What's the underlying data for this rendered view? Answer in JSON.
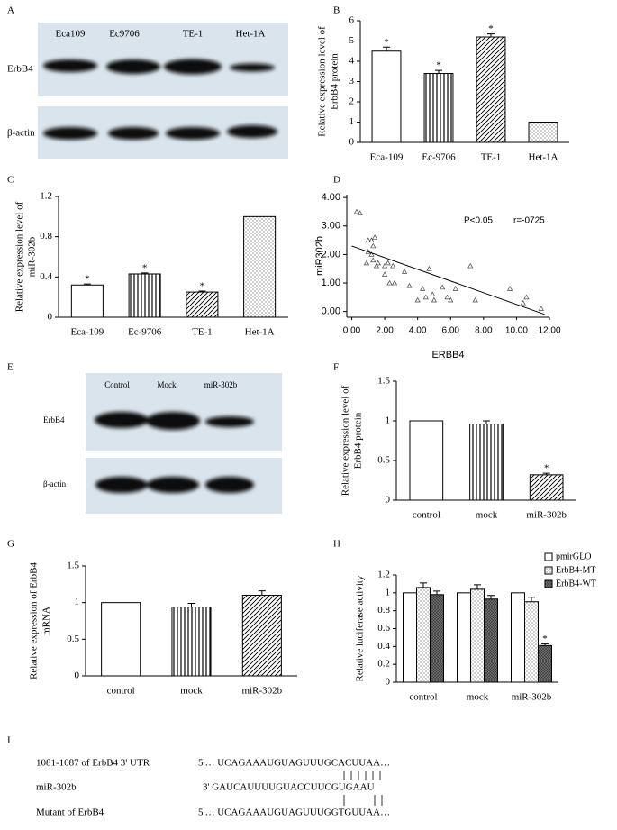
{
  "blot_a": {
    "panel": "A",
    "columns": [
      "Eca109",
      "Ec9706",
      "TE-1",
      "Het-1A"
    ],
    "rows": [
      "ErbB4",
      "β-actin"
    ]
  },
  "blot_e": {
    "panel": "E",
    "columns": [
      "Control",
      "Mock",
      "miR-302b"
    ],
    "rows": [
      "ErbB4",
      "β-actin"
    ]
  },
  "chart_data": [
    {
      "type": "bar",
      "panel": "B",
      "ylabel": [
        "Relative expression level of",
        "ErbB4 protein"
      ],
      "categories": [
        "Eca-109",
        "Ec-9706",
        "TE-1",
        "Het-1A"
      ],
      "values": [
        4.5,
        3.4,
        5.2,
        1
      ],
      "errors": [
        0.2,
        0.15,
        0.15,
        0
      ],
      "significance": [
        "*",
        "*",
        "*",
        null
      ],
      "patterns": [
        "none",
        "vertical",
        "diagonal",
        "dots"
      ],
      "ylim": [
        0,
        6
      ],
      "yticks": [
        0,
        1,
        2,
        3,
        4,
        5,
        6
      ]
    },
    {
      "type": "bar",
      "panel": "C",
      "ylabel": [
        "Relative expression level of",
        "miR-302b"
      ],
      "categories": [
        "Eca-109",
        "Ec-9706",
        "TE-1",
        "Het-1A"
      ],
      "values": [
        0.32,
        0.43,
        0.25,
        1
      ],
      "errors": [
        0.01,
        0.01,
        0.01,
        0
      ],
      "significance": [
        "*",
        "*",
        "*",
        null
      ],
      "patterns": [
        "none",
        "vertical",
        "diagonal",
        "dots"
      ],
      "ylim": [
        0,
        1.2
      ],
      "yticks": [
        0,
        0.4,
        0.8,
        1.2
      ]
    },
    {
      "type": "scatter",
      "panel": "D",
      "xlabel": "ERBB4",
      "ylabel": [
        "miR302b"
      ],
      "annotations": [
        "P<0.05",
        "r=-0725"
      ],
      "x": [
        0.3,
        0.5,
        1.0,
        1.2,
        1.4,
        1.3,
        1.0,
        1.2,
        0.9,
        1.3,
        1.5,
        1.6,
        2.0,
        2.2,
        2.5,
        2.0,
        2.3,
        2.6,
        3.2,
        3.5,
        4.0,
        4.3,
        4.7,
        4.5,
        4.9,
        5.0,
        5.5,
        5.8,
        6.0,
        6.3,
        7.2,
        7.5,
        9.6,
        10.4,
        10.6,
        11.5
      ],
      "y": [
        3.5,
        3.45,
        2.5,
        2.5,
        2.6,
        2.3,
        2.1,
        2.0,
        1.7,
        1.8,
        1.6,
        1.7,
        1.6,
        1.7,
        1.6,
        1.3,
        1.0,
        1.0,
        1.4,
        0.9,
        0.4,
        0.8,
        1.5,
        0.5,
        0.6,
        0.4,
        0.85,
        0.5,
        0.4,
        0.8,
        1.6,
        0.4,
        0.8,
        0.3,
        0.5,
        0.1
      ],
      "fit": {
        "x": [
          0,
          11.7
        ],
        "y": [
          2.3,
          -0.1
        ]
      },
      "xlim": [
        -0.3,
        12
      ],
      "ylim": [
        -0.2,
        4.1
      ],
      "xticks": [
        {
          "value": 0,
          "label": "0.00"
        },
        {
          "value": 2,
          "label": "2.00"
        },
        {
          "value": 4,
          "label": "4.00"
        },
        {
          "value": 6,
          "label": "6.00"
        },
        {
          "value": 8,
          "label": "8.00"
        },
        {
          "value": 10,
          "label": "10.00"
        },
        {
          "value": 12,
          "label": "12.00"
        }
      ],
      "yticks": [
        {
          "value": 0,
          "label": "0.00"
        },
        {
          "value": 1,
          "label": "1.00"
        },
        {
          "value": 2,
          "label": "2.00"
        },
        {
          "value": 3,
          "label": "3.00"
        },
        {
          "value": 4,
          "label": "4.00"
        }
      ]
    },
    {
      "type": "bar",
      "panel": "F",
      "ylabel": [
        "Relative expression level of",
        "ErbB4 protein"
      ],
      "categories": [
        "control",
        "mock",
        "miR-302b"
      ],
      "values": [
        1,
        0.96,
        0.32
      ],
      "errors": [
        0,
        0.04,
        0.02
      ],
      "significance": [
        null,
        null,
        "*"
      ],
      "patterns": [
        "none",
        "vertical",
        "diagonal"
      ],
      "ylim": [
        0,
        1.5
      ],
      "yticks": [
        0,
        0.5,
        1,
        1.5
      ]
    },
    {
      "type": "bar",
      "panel": "G",
      "ylabel": [
        "Relative expression of ErbB4",
        "mRNA"
      ],
      "categories": [
        "control",
        "mock",
        "miR-302b"
      ],
      "values": [
        1,
        0.94,
        1.1
      ],
      "errors": [
        0,
        0.05,
        0.06
      ],
      "significance": [
        null,
        null,
        null
      ],
      "patterns": [
        "none",
        "vertical",
        "diagonal"
      ],
      "ylim": [
        0,
        1.5
      ],
      "yticks": [
        0,
        0.5,
        1,
        1.5
      ]
    },
    {
      "type": "grouped_bar",
      "panel": "H",
      "ylabel": [
        "Relative luciferase activity"
      ],
      "categories": [
        "control",
        "mock",
        "miR-302b"
      ],
      "series": [
        {
          "name": "pmirGLO",
          "pattern": "none",
          "values": [
            1,
            1,
            1
          ],
          "errors": [
            0,
            0,
            0
          ],
          "significance": [
            null,
            null,
            null
          ]
        },
        {
          "name": "ErbB4-MT",
          "pattern": "dots",
          "values": [
            1.06,
            1.04,
            0.9
          ],
          "errors": [
            0.05,
            0.05,
            0.05
          ],
          "significance": [
            null,
            null,
            null
          ]
        },
        {
          "name": "ErbB4-WT",
          "pattern": "grid",
          "values": [
            0.98,
            0.93,
            0.41
          ],
          "errors": [
            0.04,
            0.04,
            0.02
          ],
          "significance": [
            null,
            null,
            "*"
          ]
        }
      ],
      "ylim": [
        0,
        1.2
      ],
      "yticks": [
        0,
        0.2,
        0.4,
        0.6,
        0.8,
        1,
        1.2
      ]
    }
  ],
  "sequence": {
    "panel": "I",
    "rows": [
      {
        "label": "1081-1087 of ErbB4 3' UTR",
        "seq": "5'… UCAGAAAUGUAGUUUGCACUUAA…"
      },
      {
        "label": "miR-302b",
        "seq": "3' GAUCAUUUUGUACCUUCGUGAAU"
      },
      {
        "label": "Mutant of ErbB4",
        "seq": "5'… UCAGAAAUGUAGUUUGGTGUUAA…"
      }
    ]
  }
}
